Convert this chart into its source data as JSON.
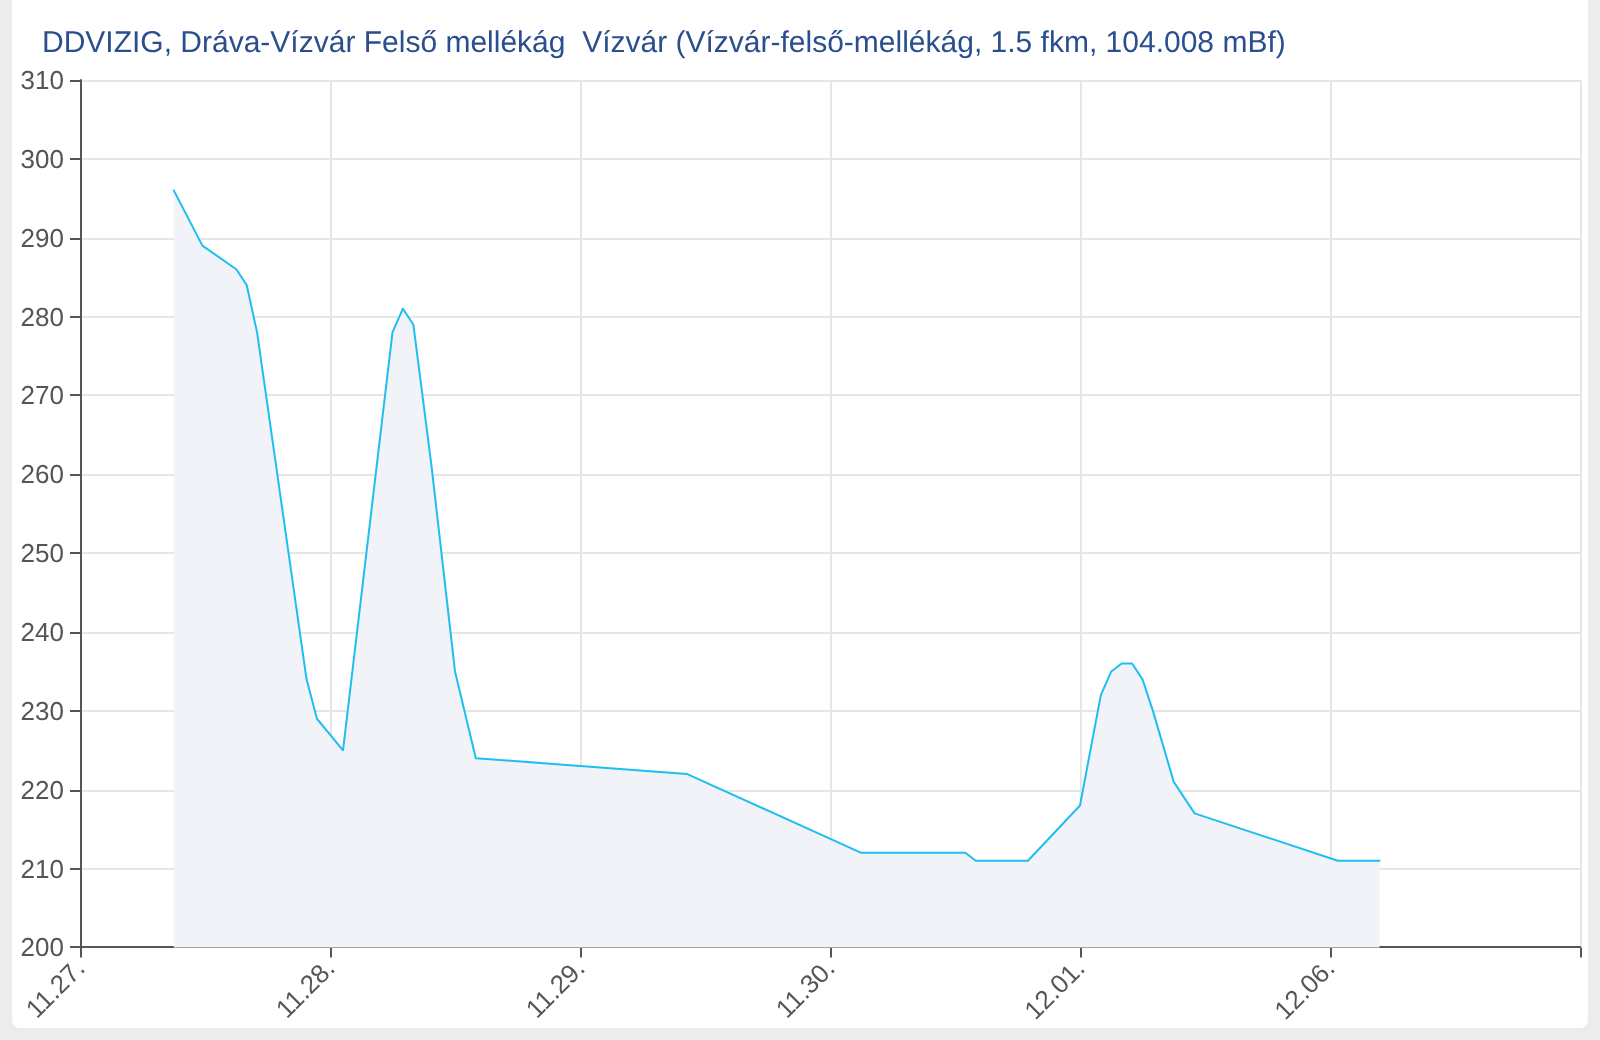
{
  "chart_data": {
    "type": "area",
    "title": "DDVIZIG, Dráva-Vízvár Felső mellékág  Vízvár (Vízvár-felső-mellékág, 1.5 fkm, 104.008 mBf)",
    "x": [
      "--11-27T09:00",
      "--11-27T11:45",
      "--11-27T15:00",
      "--11-27T16:00",
      "--11-27T17:00",
      "--11-27T21:45",
      "--11-27T22:45",
      "--11-28T01:15",
      "--11-28T06:00",
      "--11-28T07:00",
      "--11-28T08:00",
      "--11-28T09:45",
      "--11-28T12:00",
      "--11-28T14:00",
      "--11-29T10:15",
      "--11-30T03:00",
      "--11-30T13:00",
      "--11-30T14:00",
      "--11-30T19:00",
      "--12-01T00:00",
      "--12-01T02:00",
      "--12-01T03:00",
      "--12-01T04:00",
      "--12-01T05:00",
      "--12-01T06:00",
      "--12-01T07:00",
      "--12-01T09:00",
      "--12-01T11:00",
      "--12-02T00:45",
      "--12-02T04:45"
    ],
    "series": [
      {
        "color": "#1fbef0",
        "values": [
          296,
          289,
          286,
          284,
          278,
          234,
          229,
          225,
          278,
          281,
          279,
          261,
          235,
          224,
          222,
          212,
          212,
          211,
          211,
          218,
          232,
          235,
          236,
          236,
          234,
          230,
          221,
          217,
          211,
          211
        ]
      }
    ],
    "xlim": [
      "--11-27",
      "--12-03"
    ],
    "xticks": [
      {
        "value": "--11-27",
        "label": "11.27."
      },
      {
        "value": "--11-28",
        "label": "11.28."
      },
      {
        "value": "--11-29",
        "label": "11.29."
      },
      {
        "value": "--11-30",
        "label": "11.30."
      },
      {
        "value": "--12-01",
        "label": "12.01."
      },
      {
        "value": "--12-02",
        "label": "12.06."
      },
      {
        "value": "--12-03",
        "label": null
      }
    ],
    "ylim": [
      200,
      310
    ],
    "yticks": [
      200,
      210,
      220,
      230,
      240,
      250,
      260,
      270,
      280,
      290,
      300,
      310
    ],
    "grid": true
  }
}
